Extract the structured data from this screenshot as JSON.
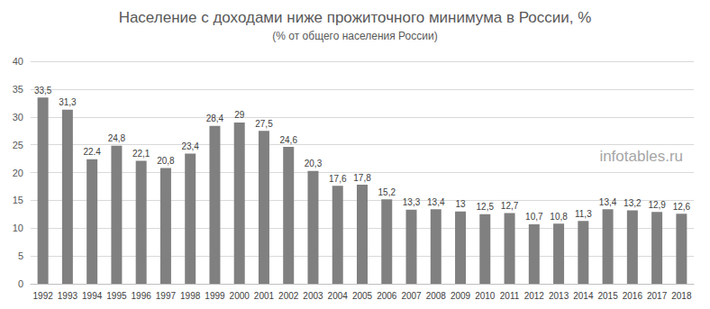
{
  "chart_data": {
    "type": "bar",
    "title": "Население с доходами ниже прожиточного минимума в России, %",
    "subtitle": "(% от общего населения России)",
    "annotation": "infotables.ru",
    "categories": [
      "1992",
      "1993",
      "1994",
      "1995",
      "1996",
      "1997",
      "1998",
      "1999",
      "2000",
      "2001",
      "2002",
      "2003",
      "2004",
      "2005",
      "2006",
      "2007",
      "2008",
      "2009",
      "2010",
      "2011",
      "2012",
      "2013",
      "2014",
      "2015",
      "2016",
      "2017",
      "2018"
    ],
    "values": [
      33.5,
      31.3,
      22.4,
      24.8,
      22.1,
      20.8,
      23.4,
      28.4,
      29,
      27.5,
      24.6,
      20.3,
      17.6,
      17.8,
      15.2,
      13.3,
      13.4,
      13,
      12.5,
      12.7,
      10.7,
      10.8,
      11.3,
      13.4,
      13.2,
      12.9,
      12.6
    ],
    "value_labels": [
      "33,5",
      "31,3",
      "22.4",
      "24,8",
      "22,1",
      "20,8",
      "23,4",
      "28,4",
      "29",
      "27,5",
      "24,6",
      "20,3",
      "17,6",
      "17,8",
      "15,2",
      "13,3",
      "13,4",
      "13",
      "12,5",
      "12,7",
      "10,7",
      "10,8",
      "11,3",
      "13,4",
      "13,2",
      "12,9",
      "12,6"
    ],
    "color": "#808080",
    "ylim": [
      0,
      40
    ],
    "yticks": [
      0,
      5,
      10,
      15,
      20,
      25,
      30,
      35,
      40
    ],
    "grid": true,
    "data_labels": true
  }
}
